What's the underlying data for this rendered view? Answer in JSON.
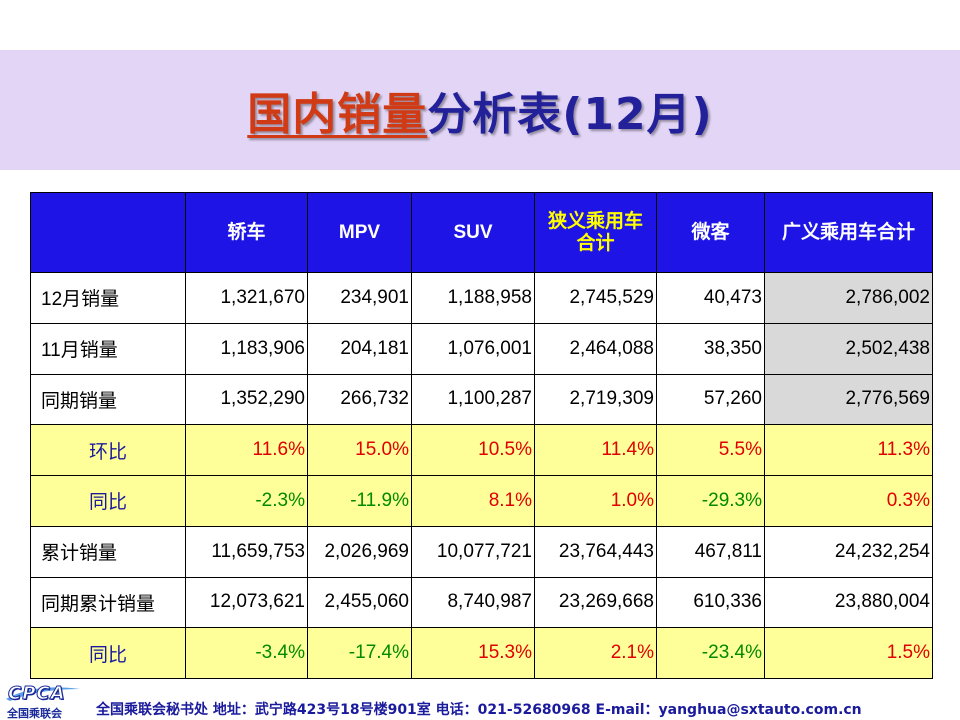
{
  "title": {
    "part1": "国内销量",
    "part2": "分析表(12月)"
  },
  "table": {
    "headers": [
      "",
      "轿车",
      "MPV",
      "SUV",
      "狭义乘用车合计",
      "微客",
      "广义乘用车合计"
    ],
    "header_lines": {
      "col4_line1": "狭义乘用车",
      "col4_line2": "合计"
    },
    "rows": [
      {
        "label": "12月销量",
        "values": [
          "1,321,670",
          "234,901",
          "1,188,958",
          "2,745,529",
          "40,473",
          "2,786,002"
        ]
      },
      {
        "label": "11月销量",
        "values": [
          "1,183,906",
          "204,181",
          "1,076,001",
          "2,464,088",
          "38,350",
          "2,502,438"
        ]
      },
      {
        "label": "同期销量",
        "values": [
          "1,352,290",
          "266,732",
          "1,100,287",
          "2,719,309",
          "57,260",
          "2,776,569"
        ]
      },
      {
        "label": "环比",
        "values": [
          "11.6%",
          "15.0%",
          "10.5%",
          "11.4%",
          "5.5%",
          "11.3%"
        ]
      },
      {
        "label": "同比",
        "values": [
          "-2.3%",
          "-11.9%",
          "8.1%",
          "1.0%",
          "-29.3%",
          "0.3%"
        ]
      },
      {
        "label": "累计销量",
        "values": [
          "11,659,753",
          "2,026,969",
          "10,077,721",
          "23,764,443",
          "467,811",
          "24,232,254"
        ]
      },
      {
        "label": "同期累计销量",
        "values": [
          "12,073,621",
          "2,455,060",
          "8,740,987",
          "23,269,668",
          "610,336",
          "23,880,004"
        ]
      },
      {
        "label": "同比",
        "values": [
          "-3.4%",
          "-17.4%",
          "15.3%",
          "2.1%",
          "-23.4%",
          "1.5%"
        ]
      }
    ]
  },
  "footer": {
    "logo_text": "CPCA",
    "logo_subtext": "全国乘联会",
    "contact": "全国乘联会秘书处  地址：武宁路423号18号楼901室    电话：021-52680968   E-mail：yanghua@sxtauto.com.cn"
  },
  "colors": {
    "header_bg": "#1e14e6",
    "title_band": "#e2d5f5",
    "pct_row_bg": "#ffff99",
    "positive": "#e00000",
    "negative": "#008a00",
    "highlight_col": "#d9d9d9"
  }
}
